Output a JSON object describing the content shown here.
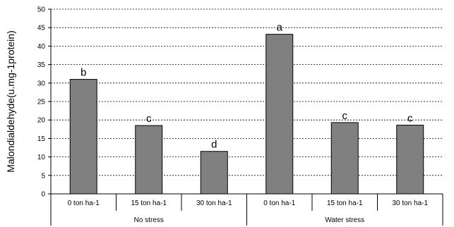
{
  "chart_data": {
    "type": "bar",
    "ylabel": "Malondialdehyde(u.mg-1protein)",
    "ylim": [
      0,
      50
    ],
    "yticks": [
      0,
      5,
      10,
      15,
      20,
      25,
      30,
      35,
      40,
      45,
      50
    ],
    "grid": true,
    "categories": [
      "0 ton ha-1",
      "15 ton ha-1",
      "30 ton ha-1",
      "0 ton ha-1",
      "15 ton ha-1",
      "30 ton ha-1"
    ],
    "groups": [
      {
        "label": "No stress",
        "categories": [
          0,
          1,
          2
        ]
      },
      {
        "label": "Water  stress",
        "categories": [
          3,
          4,
          5
        ]
      }
    ],
    "values": [
      31,
      18.5,
      11.5,
      43.2,
      19.3,
      18.6
    ],
    "significance_letters": [
      "b",
      "c",
      "d",
      "a",
      "c",
      "c"
    ],
    "bar_color": "#808080"
  }
}
